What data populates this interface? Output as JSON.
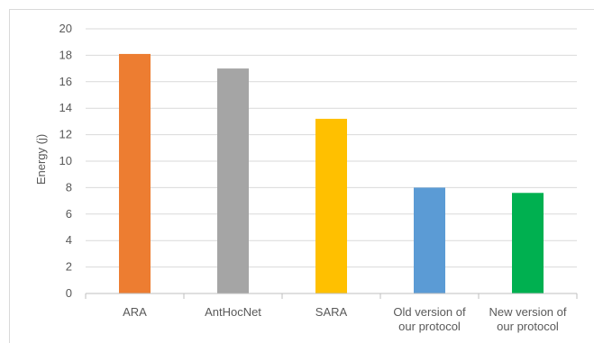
{
  "chart_data": {
    "type": "bar",
    "title": "",
    "xlabel": "",
    "ylabel": "Energy (j)",
    "ylim": [
      0,
      20
    ],
    "ytick_step": 2,
    "yticks": [
      "0",
      "2",
      "4",
      "6",
      "8",
      "10",
      "12",
      "14",
      "16",
      "18",
      "20"
    ],
    "grid": true,
    "legend": "none",
    "categories": [
      [
        "ARA"
      ],
      [
        "AntHocNet"
      ],
      [
        "SARA"
      ],
      [
        "Old version of",
        "our protocol"
      ],
      [
        "New version of",
        "our protocol"
      ]
    ],
    "values": [
      18.1,
      17.0,
      13.2,
      8.0,
      7.6
    ],
    "colors": [
      "#ed7d31",
      "#a5a5a5",
      "#ffc000",
      "#5b9bd5",
      "#00b050"
    ]
  },
  "style": {
    "grid_color": "#d9d9d9",
    "axis_color": "#bfbfbf",
    "text_color": "#595959"
  }
}
